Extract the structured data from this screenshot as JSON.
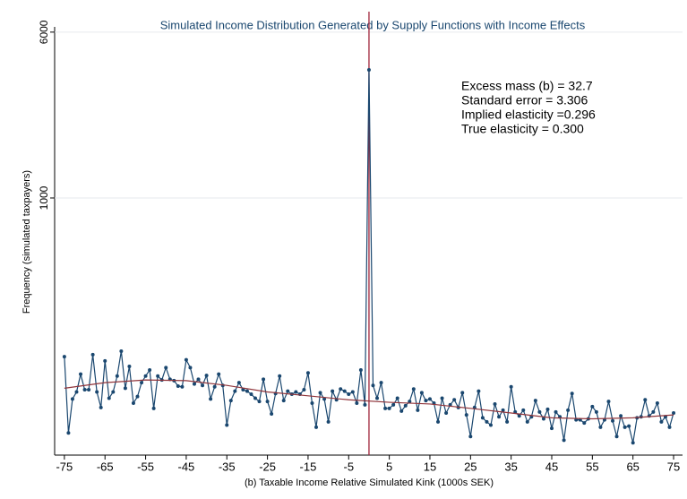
{
  "chart_data": {
    "type": "line",
    "title": "Simulated Income Distribution Generated by Supply Functions with Income Effects",
    "x_label": "(b) Taxable Income Relative Simulated Kink (1000s SEK)",
    "y_label": "Frequency (simulated taxpayers)",
    "annotations": [
      "Excess mass (b) = 32.7",
      "Standard error = 3.306",
      "Implied elasticity =0.296",
      "True elasticity = 0.300"
    ],
    "log_y": true,
    "grid": true,
    "vline": 0,
    "vline_color": "#a0253b",
    "xlim": [
      -77.4,
      77.2
    ],
    "ylim": [
      64,
      6350
    ],
    "xticks": [
      -75,
      -65,
      -55,
      -45,
      -35,
      -25,
      -15,
      -5,
      5,
      15,
      25,
      35,
      45,
      55,
      65,
      75
    ],
    "yticks": [
      1000,
      6000
    ],
    "series": [
      {
        "color": "#1a476f",
        "markers": true,
        "x": [
          -75,
          -74,
          -73,
          -72,
          -71,
          -70,
          -69,
          -68,
          -67,
          -66,
          -65,
          -64,
          -63,
          -62,
          -61,
          -60,
          -59,
          -58,
          -57,
          -56,
          -55,
          -54,
          -53,
          -52,
          -51,
          -50,
          -49,
          -48,
          -47,
          -46,
          -45,
          -44,
          -43,
          -42,
          -41,
          -40,
          -39,
          -38,
          -37,
          -36,
          -35,
          -34,
          -33,
          -32,
          -31,
          -30,
          -29,
          -28,
          -27,
          -26,
          -25,
          -24,
          -23,
          -22,
          -21,
          -20,
          -19,
          -18,
          -17,
          -16,
          -15,
          -14,
          -13,
          -12,
          -11,
          -10,
          -9,
          -8,
          -7,
          -6,
          -5,
          -4,
          -3,
          -2,
          -1,
          0,
          1,
          2,
          3,
          4,
          5,
          6,
          7,
          8,
          9,
          10,
          11,
          12,
          13,
          14,
          15,
          16,
          17,
          18,
          19,
          20,
          21,
          22,
          23,
          24,
          25,
          26,
          27,
          28,
          29,
          30,
          31,
          32,
          33,
          34,
          35,
          36,
          37,
          38,
          39,
          40,
          41,
          42,
          43,
          44,
          45,
          46,
          47,
          48,
          49,
          50,
          51,
          52,
          53,
          54,
          55,
          56,
          57,
          58,
          59,
          60,
          61,
          62,
          63,
          64,
          65,
          66,
          67,
          68,
          69,
          70,
          71,
          72,
          73,
          74,
          75
        ],
        "values": [
          180,
          79,
          114,
          123,
          149,
          126,
          126,
          184,
          123,
          104,
          172,
          115,
          123,
          146,
          191,
          128,
          162,
          109,
          117,
          136,
          146,
          156,
          103,
          146,
          140,
          160,
          141,
          139,
          131,
          130,
          174,
          160,
          134,
          141,
          132,
          147,
          114,
          130,
          149,
          132,
          86,
          112,
          124,
          136,
          126,
          124,
          120,
          115,
          111,
          141,
          111,
          97,
          121,
          146,
          112,
          124,
          120,
          123,
          120,
          126,
          151,
          109,
          84,
          122,
          114,
          89,
          124,
          113,
          127,
          124,
          120,
          123,
          109,
          156,
          107,
          3990,
          132,
          115,
          136,
          103,
          103,
          107,
          115,
          100,
          106,
          111,
          127,
          101,
          122,
          112,
          114,
          109,
          89,
          115,
          98,
          107,
          113,
          104,
          122,
          96,
          76,
          104,
          124,
          93,
          89,
          86,
          108,
          94,
          101,
          89,
          130,
          99,
          95,
          101,
          89,
          94,
          112,
          99,
          92,
          102,
          83,
          99,
          94,
          73,
          101,
          121,
          91,
          91,
          88,
          92,
          105,
          99,
          84,
          91,
          111,
          90,
          76,
          95,
          84,
          85,
          71,
          93,
          94,
          113,
          95,
          99,
          109,
          89,
          94,
          84,
          98
        ]
      },
      {
        "color": "#90353b",
        "markers": false,
        "x": [
          -75,
          -65,
          -55,
          -45,
          -35,
          -25,
          -15,
          -5,
          5,
          15,
          25,
          35,
          45,
          55,
          65,
          75
        ],
        "values": [
          128,
          136,
          140,
          139,
          132,
          123,
          118,
          113,
          110,
          108,
          103,
          98,
          93,
          92,
          93,
          96
        ]
      }
    ]
  }
}
